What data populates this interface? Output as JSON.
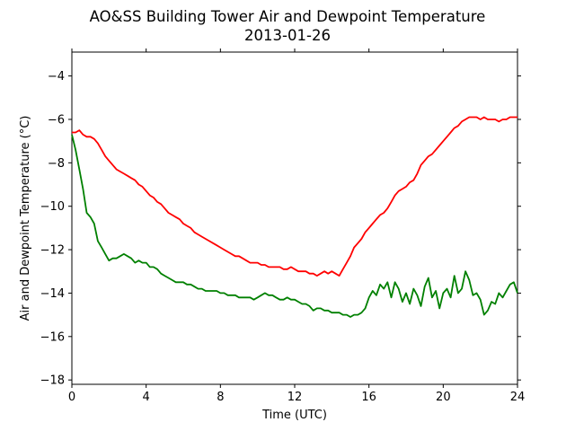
{
  "chart_data": {
    "type": "line",
    "title": "AO&SS Building Tower Air and Dewpoint Temperature",
    "subtitle": "2013-01-26",
    "xlabel": "Time (UTC)",
    "ylabel": "Air and Dewpoint Temperature (°C)",
    "xlim": [
      0,
      24
    ],
    "ylim": [
      -18.2,
      -2.9
    ],
    "xticks": [
      0,
      4,
      8,
      12,
      16,
      20,
      24
    ],
    "yticks": [
      -18,
      -16,
      -14,
      -12,
      -10,
      -8,
      -6,
      -4
    ],
    "ytick_labels": [
      "−18",
      "−16",
      "−14",
      "−12",
      "−10",
      "−8",
      "−6",
      "−4"
    ],
    "grid": false,
    "legend": "none",
    "series": [
      {
        "color": "#ff0000",
        "x": [
          0,
          0.2,
          0.4,
          0.6,
          0.8,
          1.0,
          1.2,
          1.4,
          1.6,
          1.8,
          2.0,
          2.2,
          2.4,
          2.6,
          2.8,
          3.0,
          3.2,
          3.4,
          3.6,
          3.8,
          4.0,
          4.2,
          4.4,
          4.6,
          4.8,
          5.0,
          5.2,
          5.4,
          5.6,
          5.8,
          6.0,
          6.2,
          6.4,
          6.6,
          6.8,
          7.0,
          7.2,
          7.4,
          7.6,
          7.8,
          8.0,
          8.2,
          8.4,
          8.6,
          8.8,
          9.0,
          9.2,
          9.4,
          9.6,
          9.8,
          10.0,
          10.2,
          10.4,
          10.6,
          10.8,
          11.0,
          11.2,
          11.4,
          11.6,
          11.8,
          12.0,
          12.2,
          12.4,
          12.6,
          12.8,
          13.0,
          13.2,
          13.4,
          13.6,
          13.8,
          14.0,
          14.2,
          14.4,
          14.6,
          14.8,
          15.0,
          15.2,
          15.4,
          15.6,
          15.8,
          16.0,
          16.2,
          16.4,
          16.6,
          16.8,
          17.0,
          17.2,
          17.4,
          17.6,
          17.8,
          18.0,
          18.2,
          18.4,
          18.6,
          18.8,
          19.0,
          19.2,
          19.4,
          19.6,
          19.8,
          20.0,
          20.2,
          20.4,
          20.6,
          20.8,
          21.0,
          21.2,
          21.4,
          21.6,
          21.8,
          22.0,
          22.2,
          22.4,
          22.6,
          22.8,
          23.0,
          23.2,
          23.4,
          23.6,
          23.8,
          24.0
        ],
        "y": [
          -6.6,
          -6.6,
          -6.5,
          -6.7,
          -6.8,
          -6.8,
          -6.9,
          -7.1,
          -7.4,
          -7.7,
          -7.9,
          -8.1,
          -8.3,
          -8.4,
          -8.5,
          -8.6,
          -8.7,
          -8.8,
          -9.0,
          -9.1,
          -9.3,
          -9.5,
          -9.6,
          -9.8,
          -9.9,
          -10.1,
          -10.3,
          -10.4,
          -10.5,
          -10.6,
          -10.8,
          -10.9,
          -11.0,
          -11.2,
          -11.3,
          -11.4,
          -11.5,
          -11.6,
          -11.7,
          -11.8,
          -11.9,
          -12.0,
          -12.1,
          -12.2,
          -12.3,
          -12.3,
          -12.4,
          -12.5,
          -12.6,
          -12.6,
          -12.6,
          -12.7,
          -12.7,
          -12.8,
          -12.8,
          -12.8,
          -12.8,
          -12.9,
          -12.9,
          -12.8,
          -12.9,
          -13.0,
          -13.0,
          -13.0,
          -13.1,
          -13.1,
          -13.2,
          -13.1,
          -13.0,
          -13.1,
          -13.0,
          -13.1,
          -13.2,
          -12.9,
          -12.6,
          -12.3,
          -11.9,
          -11.7,
          -11.5,
          -11.2,
          -11.0,
          -10.8,
          -10.6,
          -10.4,
          -10.3,
          -10.1,
          -9.8,
          -9.5,
          -9.3,
          -9.2,
          -9.1,
          -8.9,
          -8.8,
          -8.5,
          -8.1,
          -7.9,
          -7.7,
          -7.6,
          -7.4,
          -7.2,
          -7.0,
          -6.8,
          -6.6,
          -6.4,
          -6.3,
          -6.1,
          -6.0,
          -5.9,
          -5.9,
          -5.9,
          -6.0,
          -5.9,
          -6.0,
          -6.0,
          -6.0,
          -6.1,
          -6.0,
          -6.0,
          -5.9,
          -5.9,
          -5.9
        ]
      },
      {
        "color": "#008000",
        "x": [
          0,
          0.2,
          0.4,
          0.6,
          0.8,
          1.0,
          1.2,
          1.4,
          1.6,
          1.8,
          2.0,
          2.2,
          2.4,
          2.6,
          2.8,
          3.0,
          3.2,
          3.4,
          3.6,
          3.8,
          4.0,
          4.2,
          4.4,
          4.6,
          4.8,
          5.0,
          5.2,
          5.4,
          5.6,
          5.8,
          6.0,
          6.2,
          6.4,
          6.6,
          6.8,
          7.0,
          7.2,
          7.4,
          7.6,
          7.8,
          8.0,
          8.2,
          8.4,
          8.6,
          8.8,
          9.0,
          9.2,
          9.4,
          9.6,
          9.8,
          10.0,
          10.2,
          10.4,
          10.6,
          10.8,
          11.0,
          11.2,
          11.4,
          11.6,
          11.8,
          12.0,
          12.2,
          12.4,
          12.6,
          12.8,
          13.0,
          13.2,
          13.4,
          13.6,
          13.8,
          14.0,
          14.2,
          14.4,
          14.6,
          14.8,
          15.0,
          15.2,
          15.4,
          15.6,
          15.8,
          16.0,
          16.2,
          16.4,
          16.6,
          16.8,
          17.0,
          17.2,
          17.4,
          17.6,
          17.8,
          18.0,
          18.2,
          18.4,
          18.6,
          18.8,
          19.0,
          19.2,
          19.4,
          19.6,
          19.8,
          20.0,
          20.2,
          20.4,
          20.6,
          20.8,
          21.0,
          21.2,
          21.4,
          21.6,
          21.8,
          22.0,
          22.2,
          22.4,
          22.6,
          22.8,
          23.0,
          23.2,
          23.4,
          23.6,
          23.8,
          24.0
        ],
        "y": [
          -6.7,
          -7.4,
          -8.3,
          -9.2,
          -10.3,
          -10.5,
          -10.8,
          -11.6,
          -11.9,
          -12.2,
          -12.5,
          -12.4,
          -12.4,
          -12.3,
          -12.2,
          -12.3,
          -12.4,
          -12.6,
          -12.5,
          -12.6,
          -12.6,
          -12.8,
          -12.8,
          -12.9,
          -13.1,
          -13.2,
          -13.3,
          -13.4,
          -13.5,
          -13.5,
          -13.5,
          -13.6,
          -13.6,
          -13.7,
          -13.8,
          -13.8,
          -13.9,
          -13.9,
          -13.9,
          -13.9,
          -14.0,
          -14.0,
          -14.1,
          -14.1,
          -14.1,
          -14.2,
          -14.2,
          -14.2,
          -14.2,
          -14.3,
          -14.2,
          -14.1,
          -14.0,
          -14.1,
          -14.1,
          -14.2,
          -14.3,
          -14.3,
          -14.2,
          -14.3,
          -14.3,
          -14.4,
          -14.5,
          -14.5,
          -14.6,
          -14.8,
          -14.7,
          -14.7,
          -14.8,
          -14.8,
          -14.9,
          -14.9,
          -14.9,
          -15.0,
          -15.0,
          -15.1,
          -15.0,
          -15.0,
          -14.9,
          -14.7,
          -14.2,
          -13.9,
          -14.1,
          -13.6,
          -13.8,
          -13.5,
          -14.2,
          -13.5,
          -13.8,
          -14.4,
          -14.0,
          -14.5,
          -13.8,
          -14.1,
          -14.6,
          -13.7,
          -13.3,
          -14.2,
          -13.9,
          -14.7,
          -14.0,
          -13.8,
          -14.2,
          -13.2,
          -14.0,
          -13.8,
          -13.0,
          -13.4,
          -14.1,
          -14.0,
          -14.3,
          -15.0,
          -14.8,
          -14.4,
          -14.5,
          -14.0,
          -14.2,
          -13.9,
          -13.6,
          -13.5,
          -14.0
        ]
      }
    ]
  }
}
